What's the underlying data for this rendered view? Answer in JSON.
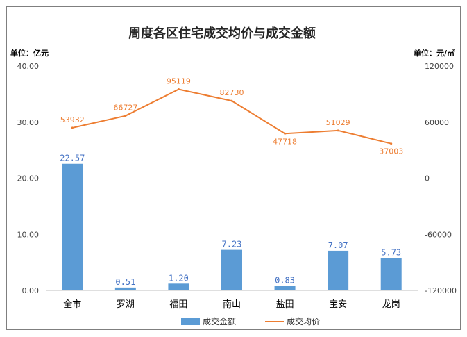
{
  "chart_data": {
    "type": "bar",
    "title": "周度各区住宅成交均价与成交金额",
    "left_unit_label": "单位：亿元",
    "right_unit_label": "单位：元/㎡",
    "categories": [
      "全市",
      "罗湖",
      "福田",
      "南山",
      "盐田",
      "宝安",
      "龙岗"
    ],
    "bar_series": {
      "name": "成交金额",
      "values": [
        22.57,
        0.51,
        1.2,
        7.23,
        0.83,
        7.07,
        5.73
      ],
      "labels": [
        "22.57",
        "0.51",
        "1.20",
        "7.23",
        "0.83",
        "7.07",
        "5.73"
      ],
      "color": "#5b9bd5",
      "label_color": "#4472c4"
    },
    "line_series": {
      "name": "成交均价",
      "values": [
        53932,
        66727,
        95119,
        82730,
        47718,
        51029,
        37003
      ],
      "labels": [
        "53932",
        "66727",
        "95119",
        "82730",
        "47718",
        "51029",
        "37003"
      ],
      "color": "#ed7d31"
    },
    "y_left": {
      "ylim": [
        0,
        40
      ],
      "ticks": [
        "0.00",
        "10.00",
        "20.00",
        "30.00",
        "40.00"
      ]
    },
    "y_right": {
      "ylim": [
        -120000,
        120000
      ],
      "ticks": [
        "-120000",
        "-60000",
        "0",
        "60000",
        "120000"
      ]
    },
    "grid": false,
    "legend_position": "bottom"
  }
}
